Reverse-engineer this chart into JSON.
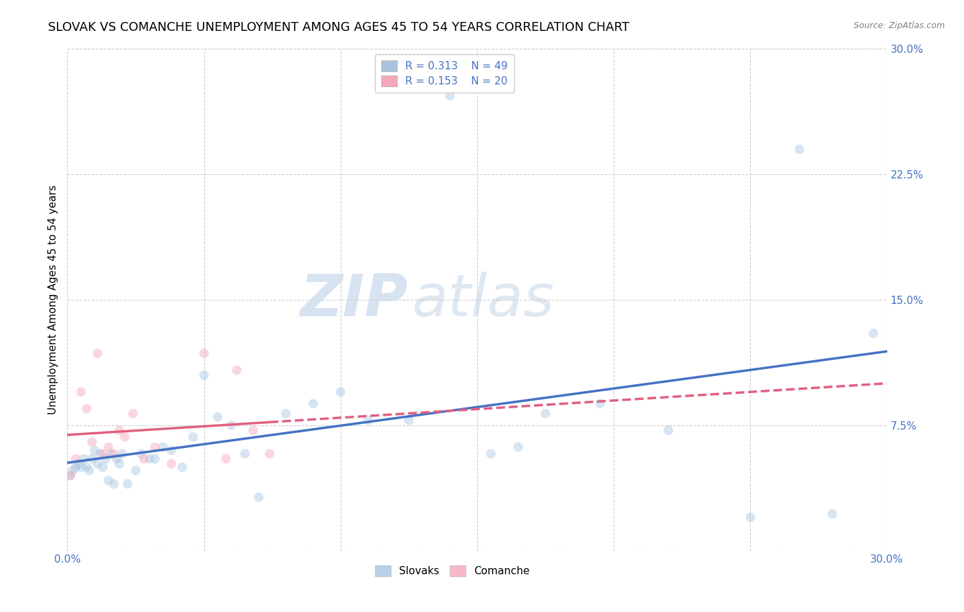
{
  "title": "SLOVAK VS COMANCHE UNEMPLOYMENT AMONG AGES 45 TO 54 YEARS CORRELATION CHART",
  "source": "Source: ZipAtlas.com",
  "ylabel": "Unemployment Among Ages 45 to 54 years",
  "watermark_zip": "ZIP",
  "watermark_atlas": "atlas",
  "xlim": [
    0,
    0.3
  ],
  "ylim": [
    0,
    0.3
  ],
  "slovaks_R": 0.313,
  "slovaks_N": 49,
  "comanche_R": 0.153,
  "comanche_N": 20,
  "slovaks_color": "#a8c4e0",
  "comanche_color": "#f4a8b8",
  "slovaks_line_color": "#4472c4",
  "comanche_line_color": "#e06080",
  "slovaks_x": [
    0.001,
    0.002,
    0.003,
    0.004,
    0.005,
    0.006,
    0.007,
    0.008,
    0.009,
    0.01,
    0.011,
    0.012,
    0.013,
    0.014,
    0.015,
    0.016,
    0.017,
    0.018,
    0.019,
    0.02,
    0.022,
    0.025,
    0.027,
    0.03,
    0.032,
    0.035,
    0.038,
    0.042,
    0.046,
    0.05,
    0.055,
    0.06,
    0.065,
    0.07,
    0.08,
    0.09,
    0.1,
    0.11,
    0.125,
    0.14,
    0.155,
    0.165,
    0.175,
    0.195,
    0.22,
    0.25,
    0.268,
    0.28,
    0.295
  ],
  "slovaks_y": [
    0.045,
    0.048,
    0.05,
    0.052,
    0.05,
    0.055,
    0.05,
    0.048,
    0.055,
    0.06,
    0.052,
    0.058,
    0.05,
    0.055,
    0.042,
    0.058,
    0.04,
    0.055,
    0.052,
    0.058,
    0.04,
    0.048,
    0.058,
    0.055,
    0.055,
    0.062,
    0.06,
    0.05,
    0.068,
    0.105,
    0.08,
    0.075,
    0.058,
    0.032,
    0.082,
    0.088,
    0.095,
    0.078,
    0.078,
    0.272,
    0.058,
    0.062,
    0.082,
    0.088,
    0.072,
    0.02,
    0.24,
    0.022,
    0.13
  ],
  "comanche_x": [
    0.001,
    0.003,
    0.005,
    0.007,
    0.009,
    0.011,
    0.013,
    0.015,
    0.017,
    0.019,
    0.021,
    0.024,
    0.028,
    0.032,
    0.038,
    0.05,
    0.058,
    0.062,
    0.068,
    0.074
  ],
  "comanche_y": [
    0.045,
    0.055,
    0.095,
    0.085,
    0.065,
    0.118,
    0.058,
    0.062,
    0.058,
    0.072,
    0.068,
    0.082,
    0.055,
    0.062,
    0.052,
    0.118,
    0.055,
    0.108,
    0.072,
    0.058
  ],
  "background_color": "#ffffff",
  "grid_color": "#cccccc",
  "title_fontsize": 13,
  "axis_label_fontsize": 11,
  "tick_fontsize": 11,
  "legend_fontsize": 11,
  "marker_size": 100,
  "marker_alpha": 0.45,
  "line_width": 2.5
}
